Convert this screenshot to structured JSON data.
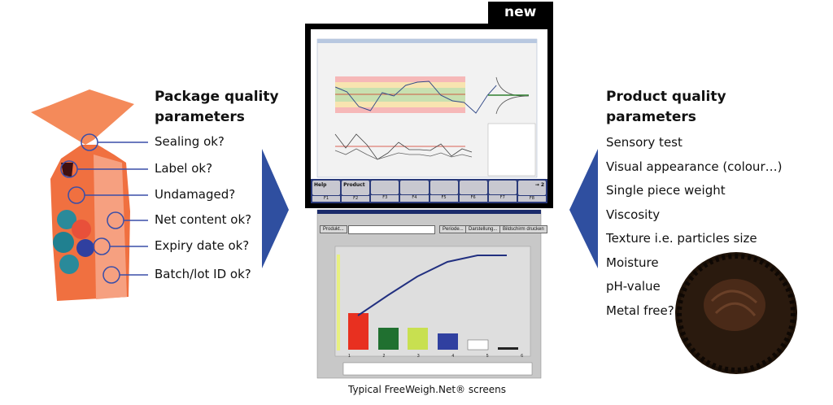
{
  "left": {
    "title_line1": "Package quality",
    "title_line2": "parameters",
    "items": [
      "Sealing ok?",
      "Label ok?",
      "Undamaged?",
      "Net content ok?",
      "Expiry date ok?",
      "Batch/lot ID ok?"
    ]
  },
  "right": {
    "title_line1": "Product quality",
    "title_line2": "parameters",
    "items": [
      "Sensory test",
      "Visual appearance (colour…)",
      "Single piece weight",
      "Viscosity",
      "Texture i.e. particles size",
      "Moisture",
      "pH-value",
      "Metal free?"
    ]
  },
  "new_badge": "new",
  "top_screen": {
    "buttons": [
      "Help",
      "Product",
      "",
      "",
      "",
      "",
      "",
      "→ 2"
    ],
    "fkeys": [
      "F1",
      "F2",
      "F3",
      "F4",
      "F5",
      "F6",
      "F7",
      "F8"
    ]
  },
  "bottom_screen": {
    "buttons": [
      "Produkt...",
      "Periode...",
      "Darstellung...",
      "Bildschirm drucken"
    ],
    "bar_labels": [
      "1",
      "2",
      "3",
      "4",
      "5",
      "6"
    ]
  },
  "caption": "Typical FreeWeigh.Net® screens",
  "colors": {
    "accent_blue": "#2f4fa0",
    "circle_blue": "#3a4ea8",
    "black": "#000000"
  }
}
